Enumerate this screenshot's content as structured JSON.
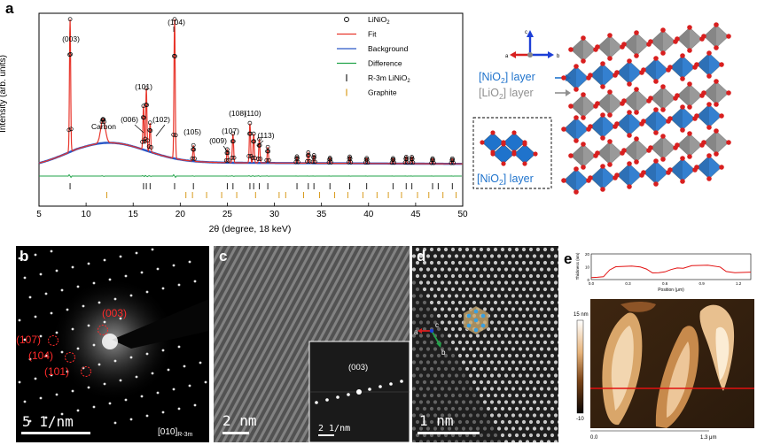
{
  "panel_a": {
    "label": "a",
    "ylabel": "Intensity (arb. units)",
    "xlabel": "2θ (degree, 18 keV)",
    "xticks": [
      "5",
      "10",
      "15",
      "20",
      "25",
      "30",
      "35",
      "40",
      "45",
      "50"
    ],
    "legend": [
      {
        "label": "LiNiO",
        "sub": "2",
        "kind": "circle",
        "color": "#000000"
      },
      {
        "label": "Fit",
        "kind": "line",
        "color": "#e8352b"
      },
      {
        "label": "Background",
        "kind": "line",
        "color": "#2a57c6"
      },
      {
        "label": "Difference",
        "kind": "line",
        "color": "#22a34a"
      },
      {
        "label": "R-3m LiNiO",
        "sub": "2",
        "kind": "tick",
        "color": "#222222"
      },
      {
        "label": "Graphite",
        "kind": "tick",
        "color": "#d89b1c"
      }
    ],
    "peak_labels": [
      {
        "text": "(003)",
        "x": 8.3
      },
      {
        "text": "(101)",
        "x": 16.4
      },
      {
        "text": "(006)",
        "x": 16.1
      },
      {
        "text": "(102)",
        "x": 16.8
      },
      {
        "text": "(104)",
        "x": 19.4
      },
      {
        "text": "(105)",
        "x": 21.4
      },
      {
        "text": "(009)",
        "x": 25.0
      },
      {
        "text": "(107)",
        "x": 25.6
      },
      {
        "text": "(108)",
        "x": 27.4
      },
      {
        "text": "(110)",
        "x": 28.4
      },
      {
        "text": "(113)",
        "x": 29.3
      },
      {
        "text": "Carbon",
        "x": 12.2
      }
    ]
  },
  "chart_data": {
    "type": "line",
    "title": "",
    "xlabel": "2θ (degree, 18 keV)",
    "ylabel": "Intensity (arb. units)",
    "xlim": [
      5,
      50
    ],
    "grid": false,
    "legend_position": "top-right",
    "series": [
      {
        "name": "LiNiO2",
        "peaks": [
          {
            "x": 8.3,
            "h": 1.0
          },
          {
            "x": 11.8,
            "h": 0.18
          },
          {
            "x": 16.1,
            "h": 0.33
          },
          {
            "x": 16.4,
            "h": 0.47
          },
          {
            "x": 16.8,
            "h": 0.22
          },
          {
            "x": 19.4,
            "h": 1.05
          },
          {
            "x": 21.4,
            "h": 0.12
          },
          {
            "x": 25.0,
            "h": 0.1
          },
          {
            "x": 25.6,
            "h": 0.22
          },
          {
            "x": 27.4,
            "h": 0.3
          },
          {
            "x": 27.8,
            "h": 0.22
          },
          {
            "x": 28.4,
            "h": 0.18
          },
          {
            "x": 29.3,
            "h": 0.12
          },
          {
            "x": 32.4,
            "h": 0.05
          },
          {
            "x": 33.6,
            "h": 0.08
          },
          {
            "x": 34.2,
            "h": 0.06
          },
          {
            "x": 35.9,
            "h": 0.04
          },
          {
            "x": 38.0,
            "h": 0.05
          },
          {
            "x": 39.8,
            "h": 0.04
          },
          {
            "x": 42.6,
            "h": 0.04
          },
          {
            "x": 44.0,
            "h": 0.05
          },
          {
            "x": 44.6,
            "h": 0.05
          },
          {
            "x": 46.8,
            "h": 0.04
          },
          {
            "x": 48.9,
            "h": 0.04
          }
        ]
      }
    ],
    "ticks_r3m": [
      8.3,
      16.1,
      16.4,
      16.8,
      19.4,
      21.4,
      25.0,
      25.6,
      27.4,
      27.8,
      28.4,
      29.3,
      32.4,
      33.6,
      34.2,
      35.9,
      38.0,
      39.8,
      42.6,
      44.0,
      44.6,
      46.8,
      47.4,
      48.9
    ],
    "ticks_graphite": [
      12.2,
      20.6,
      21.3,
      22.8,
      24.4,
      26.0,
      28.0,
      30.5,
      31.2,
      33.1,
      34.8,
      36.4,
      37.8,
      39.4,
      40.9,
      42.1,
      43.5,
      45.2,
      46.4,
      47.9,
      49.3
    ]
  },
  "structure": {
    "axes": {
      "c": "c",
      "a": "a",
      "b": "b"
    },
    "nio2_layer_label": "[NiO",
    "nio2_sub": "2",
    "nio2_suffix": "] layer",
    "lio2_layer_label": "[LiO",
    "lio2_sub": "2",
    "lio2_suffix": "] layer",
    "inset_label": "[NiO",
    "inset_sub": "2",
    "inset_suffix": "] layer",
    "colors": {
      "nio2": "#1f73cc",
      "lio2": "#8f8f8f",
      "oxygen": "#d81f1f"
    }
  },
  "panel_b": {
    "label": "b",
    "spots": [
      "(003)",
      "(107)",
      "(104)",
      "(101)"
    ],
    "scalebar": "5 1/nm",
    "zone": "[010]",
    "zone_sub": "R-3m"
  },
  "panel_c": {
    "label": "c",
    "scalebar": "2 nm",
    "fft_label": "(003)",
    "fft_scalebar": "2 1/nm"
  },
  "panel_d": {
    "label": "d",
    "scalebar": "1 nm",
    "axes": {
      "a": "a",
      "b": "b",
      "c": "c"
    }
  },
  "panel_e": {
    "label": "e",
    "profile_ylabel": "Thickness (nm)",
    "profile_xlabel": "Position (μm)",
    "profile_yticks": [
      "20",
      "10",
      "0"
    ],
    "profile_xticks": [
      "0.0",
      "0.3",
      "0.6",
      "0.9",
      "1.2"
    ],
    "colorbar_max": "15 nm",
    "colorbar_min": "-10",
    "scale_start": "0.0",
    "scale_end": "1.3 μm",
    "profile_points": [
      [
        0.0,
        1.5
      ],
      [
        0.05,
        1.8
      ],
      [
        0.1,
        2.2
      ],
      [
        0.15,
        7.5
      ],
      [
        0.2,
        10
      ],
      [
        0.33,
        10.5
      ],
      [
        0.4,
        9.8
      ],
      [
        0.45,
        8.2
      ],
      [
        0.5,
        5.2
      ],
      [
        0.55,
        5.3
      ],
      [
        0.6,
        6.0
      ],
      [
        0.65,
        7.8
      ],
      [
        0.7,
        9
      ],
      [
        0.75,
        8.8
      ],
      [
        0.82,
        10.8
      ],
      [
        0.95,
        11.2
      ],
      [
        1.05,
        9.8
      ],
      [
        1.1,
        6.3
      ],
      [
        1.17,
        5.4
      ],
      [
        1.22,
        5.5
      ],
      [
        1.3,
        5.8
      ]
    ]
  }
}
